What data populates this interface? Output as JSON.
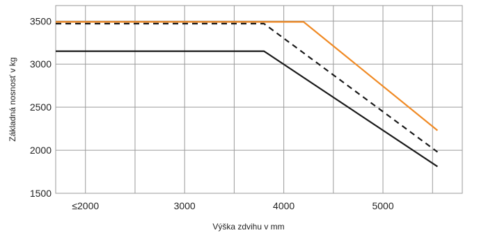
{
  "chart_data": {
    "type": "line",
    "title": "",
    "xlabel": "Výška zdvihu v mm",
    "ylabel": "Základná nosnosť v kg",
    "xlim": [
      1700,
      5800
    ],
    "ylim": [
      1500,
      3680
    ],
    "x_ticks": [
      {
        "value": 2000,
        "label": "≤2000"
      },
      {
        "value": 3000,
        "label": "3000"
      },
      {
        "value": 4000,
        "label": "4000"
      },
      {
        "value": 5000,
        "label": "5000"
      }
    ],
    "y_ticks": [
      {
        "value": 1500,
        "label": "1500"
      },
      {
        "value": 2000,
        "label": "2000"
      },
      {
        "value": 2500,
        "label": "2500"
      },
      {
        "value": 3000,
        "label": "3000"
      },
      {
        "value": 3500,
        "label": "3500"
      }
    ],
    "x_grid": [
      2000,
      2500,
      3000,
      3500,
      4000,
      4500,
      5000,
      5500
    ],
    "y_grid": [
      1500,
      2000,
      2500,
      3000,
      3500
    ],
    "grid": true,
    "series": [
      {
        "color": "#f08a24",
        "dash": "solid",
        "x": [
          1700,
          4200,
          5550
        ],
        "y": [
          3490,
          3490,
          2230
        ]
      },
      {
        "color": "#1a1a1a",
        "dash": "dashed",
        "x": [
          1700,
          3800,
          5550
        ],
        "y": [
          3470,
          3470,
          1980
        ]
      },
      {
        "color": "#1a1a1a",
        "dash": "solid",
        "x": [
          1700,
          3800,
          5550
        ],
        "y": [
          3150,
          3150,
          1810
        ]
      }
    ]
  }
}
